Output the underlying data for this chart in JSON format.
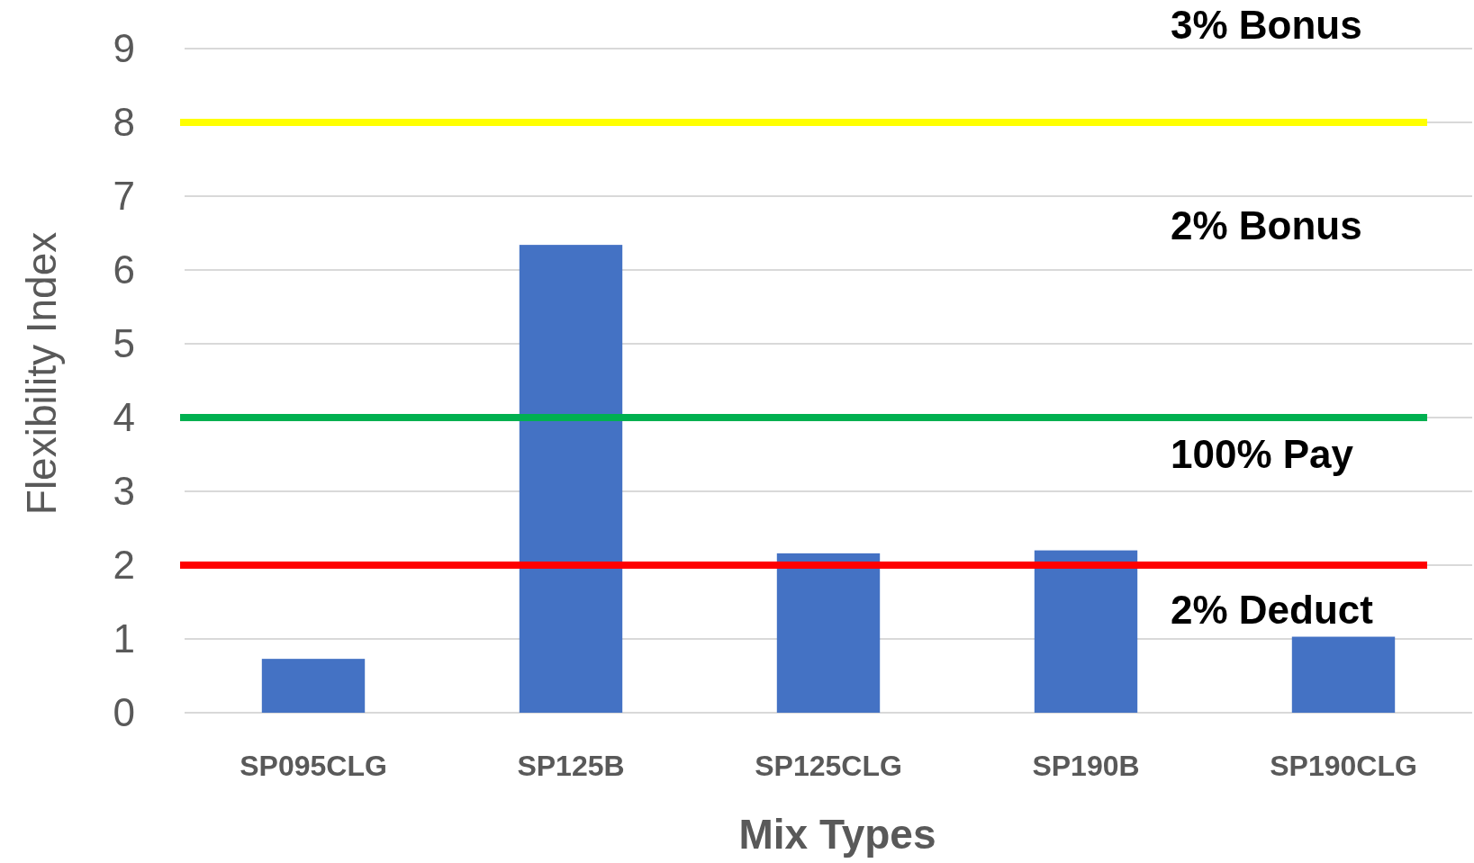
{
  "chart_data": {
    "type": "bar",
    "xlabel": "Mix Types",
    "ylabel": "Flexibility Index",
    "categories": [
      "SP095CLG",
      "SP125B",
      "SP125CLG",
      "SP190B",
      "SP190CLG"
    ],
    "values": [
      0.73,
      6.34,
      2.16,
      2.2,
      1.03
    ],
    "color": "#4472c4",
    "ylim": [
      0,
      9
    ],
    "yticks": [
      0,
      1,
      2,
      3,
      4,
      5,
      6,
      7,
      8,
      9
    ],
    "grid": "y",
    "ref_lines": [
      {
        "axis": "y",
        "value": 8,
        "color": "#ffff00"
      },
      {
        "axis": "y",
        "value": 4,
        "color": "#00b050"
      },
      {
        "axis": "y",
        "value": 2,
        "color": "#ff0000"
      }
    ],
    "annotations": [
      "3% Bonus",
      "2% Bonus",
      "100% Pay",
      "2% Deduct"
    ]
  }
}
